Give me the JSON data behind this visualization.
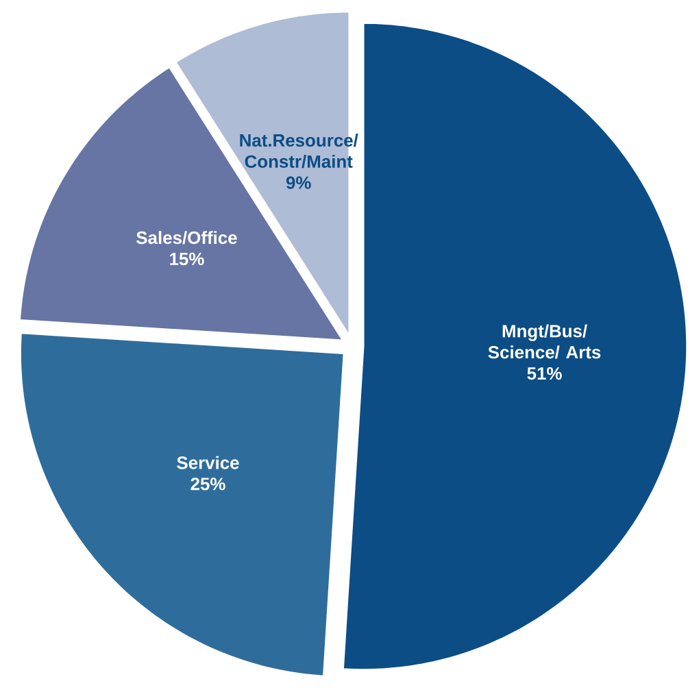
{
  "chart_data": {
    "type": "pie",
    "categories": [
      "Mngt/Bus/ Science/ Arts",
      "Service",
      "Sales/Office",
      "Nat.Resource/ Constr/Maint"
    ],
    "values": [
      51,
      25,
      15,
      9
    ],
    "value_labels": [
      "51%",
      "25%",
      "15%",
      "9%"
    ],
    "colors": [
      "#0c4d85",
      "#2e6d9b",
      "#6675a3",
      "#aebcd6"
    ]
  }
}
